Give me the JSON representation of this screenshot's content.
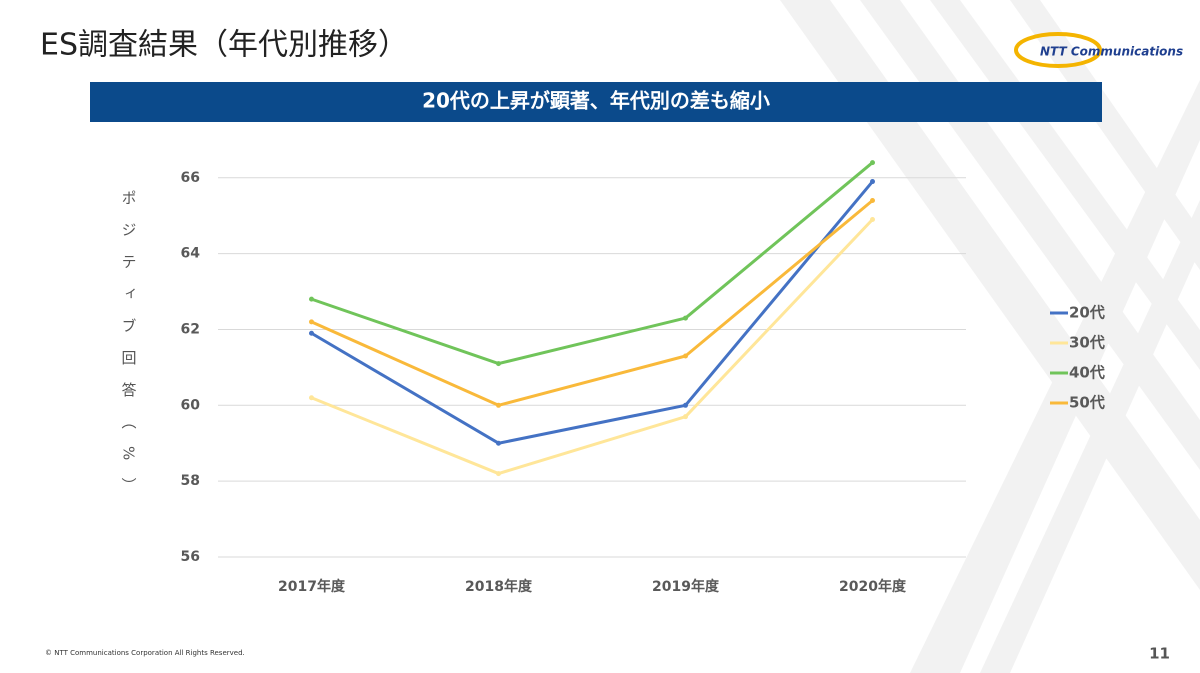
{
  "header": {
    "title": "ES調査結果（年代別推移）",
    "logo": "NTT Communications",
    "banner": "20代の上昇が顕著、年代別の差も縮小"
  },
  "chart_data": {
    "type": "line",
    "y_label": "ポジティブ回答（%）",
    "categories": [
      "2017年度",
      "2018年度",
      "2019年度",
      "2020年度"
    ],
    "ylim": [
      56,
      66.6
    ],
    "yticks": [
      56,
      58,
      60,
      62,
      64,
      66
    ],
    "grid": true,
    "legend": "right",
    "series": [
      {
        "name": "20代",
        "color": "#4472c4",
        "values": [
          61.9,
          59.0,
          60.0,
          65.9
        ]
      },
      {
        "name": "30代",
        "color": "#ffe699",
        "values": [
          60.2,
          58.2,
          59.7,
          64.9
        ]
      },
      {
        "name": "40代",
        "color": "#70c45a",
        "values": [
          62.8,
          61.1,
          62.3,
          66.4
        ]
      },
      {
        "name": "50代",
        "color": "#f9b93a",
        "values": [
          62.2,
          60.0,
          61.3,
          65.4
        ]
      }
    ]
  },
  "footer": {
    "copyright": "© NTT Communications Corporation All Rights Reserved.",
    "page": "11"
  }
}
